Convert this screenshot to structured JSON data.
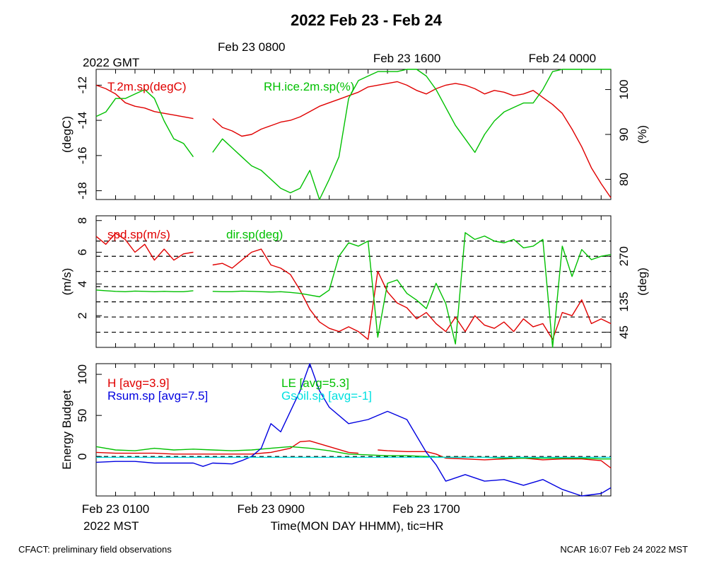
{
  "page": {
    "title": "2022 Feb 23 - Feb 24",
    "footer_left": "CFACT: preliminary field observations",
    "footer_right": "NCAR 16:07 Feb 24 2022 MST"
  },
  "colors": {
    "red": "#e00000",
    "green": "#00c000",
    "blue": "#0000e0",
    "cyan": "#00e0e0",
    "black": "#000000"
  },
  "chart_data": [
    {
      "type": "line",
      "panel": "temperature-rh",
      "top_axis": {
        "ticks": [
          {
            "hour": 8,
            "label": "Feb 23 0800"
          },
          {
            "hour": 16,
            "label": "Feb 23 1600"
          },
          {
            "hour": 24,
            "label": "Feb 24 0000"
          }
        ],
        "year_label": "2022 GMT"
      },
      "xlim": [
        0,
        26.5
      ],
      "ylabel": "(degC)",
      "ylim": [
        -18.5,
        -11.1
      ],
      "yticks": [
        -18,
        -16,
        -14,
        -12
      ],
      "ylabel_right": "(%)",
      "ylim_right": [
        75.5,
        104.5
      ],
      "yticks_right": [
        80,
        90,
        100
      ],
      "series": [
        {
          "name": "T.2m.sp(degC)",
          "axis": "left",
          "color": "red",
          "x": [
            0,
            0.5,
            1,
            1.5,
            2,
            2.5,
            3,
            3.5,
            4,
            4.5,
            5,
            5.5,
            6,
            6.5,
            7,
            7.5,
            8,
            8.5,
            9,
            9.5,
            10,
            10.5,
            11,
            11.5,
            12,
            12.5,
            13,
            13.5,
            14,
            14.5,
            15,
            15.5,
            16,
            16.5,
            17,
            17.5,
            18,
            18.5,
            19,
            19.5,
            20,
            20.5,
            21,
            21.5,
            22,
            22.5,
            23,
            23.5,
            24,
            24.5,
            25,
            25.5,
            26,
            26.5
          ],
          "y": [
            -12.0,
            -12.2,
            -12.5,
            -13.0,
            -13.2,
            -13.3,
            -13.5,
            -13.6,
            -13.7,
            -13.8,
            -13.9,
            null,
            -13.9,
            -14.4,
            -14.6,
            -14.9,
            -14.8,
            -14.5,
            -14.3,
            -14.1,
            -14.0,
            -13.8,
            -13.5,
            -13.2,
            -13.0,
            -12.8,
            -12.6,
            -12.4,
            -12.1,
            -12.0,
            -11.9,
            -11.8,
            -12.0,
            -12.3,
            -12.5,
            -12.2,
            -12.0,
            -11.9,
            -12.0,
            -12.2,
            -12.5,
            -12.3,
            -12.4,
            -12.6,
            -12.5,
            -12.3,
            -12.7,
            -13.1,
            -13.6,
            -14.5,
            -15.5,
            -16.7,
            -17.6,
            -18.4
          ]
        },
        {
          "name": "RH.ice.2m.sp(%)",
          "axis": "right",
          "color": "green",
          "x": [
            0,
            0.5,
            1,
            1.5,
            2,
            2.5,
            3,
            3.5,
            4,
            4.5,
            5,
            5.5,
            6,
            6.5,
            7,
            7.5,
            8,
            8.5,
            9,
            9.5,
            10,
            10.5,
            11,
            11.5,
            12,
            12.5,
            13,
            13.5,
            14,
            14.5,
            15,
            15.5,
            16,
            16.5,
            17,
            17.5,
            18,
            18.5,
            19,
            19.5,
            20,
            20.5,
            21,
            21.5,
            22,
            22.5,
            23,
            23.5,
            24,
            24.5,
            25,
            25.5,
            26,
            26.5
          ],
          "y": [
            94,
            95,
            98,
            98,
            99,
            100,
            98,
            93,
            89,
            88,
            85,
            null,
            86,
            89,
            87,
            85,
            83,
            82,
            80,
            78,
            77,
            78,
            82,
            75.5,
            80,
            85,
            98,
            102,
            103,
            104,
            104,
            104,
            105,
            105,
            103,
            100,
            96,
            92,
            89,
            86,
            90,
            93,
            95,
            96,
            97,
            97,
            100,
            104,
            105.5,
            105.5,
            105.5,
            105.5,
            105.5,
            105.5
          ]
        }
      ]
    },
    {
      "type": "line",
      "panel": "wind",
      "xlim": [
        0,
        26.5
      ],
      "ylabel": "(m/s)",
      "ylim": [
        0,
        8.3
      ],
      "yticks": [
        2,
        4,
        6,
        8
      ],
      "ylabel_right": "(deg)",
      "ylim_right": [
        0,
        390
      ],
      "yticks_right": [
        45,
        135,
        270
      ],
      "dashed_lines_right": [
        45,
        90,
        135,
        180,
        225,
        270,
        315
      ],
      "series": [
        {
          "name": "spd.sp(m/s)",
          "axis": "left",
          "color": "red",
          "x": [
            0,
            0.5,
            1,
            1.5,
            2,
            2.5,
            3,
            3.5,
            4,
            4.5,
            5,
            5.5,
            6,
            6.5,
            7,
            7.5,
            8,
            8.5,
            9,
            9.5,
            10,
            10.5,
            11,
            11.5,
            12,
            12.5,
            13,
            13.5,
            14,
            14.5,
            15,
            15.5,
            16,
            16.5,
            17,
            17.5,
            18,
            18.5,
            19,
            19.5,
            20,
            20.5,
            21,
            21.5,
            22,
            22.5,
            23,
            23.5,
            24,
            24.5,
            25,
            25.5,
            26,
            26.5
          ],
          "y": [
            7.0,
            6.5,
            7.2,
            6.8,
            6.0,
            6.5,
            5.5,
            6.2,
            5.5,
            5.9,
            6.0,
            null,
            5.2,
            5.3,
            5.0,
            5.5,
            6.0,
            6.2,
            5.2,
            5.0,
            4.6,
            3.6,
            2.4,
            1.6,
            1.2,
            1.0,
            1.3,
            1.0,
            0.5,
            4.8,
            3.5,
            2.8,
            2.5,
            1.8,
            2.2,
            1.5,
            1.0,
            1.9,
            1.0,
            2.0,
            1.4,
            1.2,
            1.6,
            1.0,
            1.8,
            1.3,
            1.5,
            0.5,
            2.2,
            2.0,
            3.0,
            1.5,
            1.8,
            1.5
          ]
        },
        {
          "name": "dir.sp(deg)",
          "axis": "right",
          "color": "green",
          "x": [
            0,
            0.5,
            1,
            1.5,
            2,
            2.5,
            3,
            3.5,
            4,
            4.5,
            5,
            5.5,
            6,
            6.5,
            7,
            7.5,
            8,
            8.5,
            9,
            9.5,
            10,
            10.5,
            11,
            11.5,
            12,
            12.5,
            13,
            13.5,
            14,
            14.5,
            15,
            15.5,
            16,
            16.5,
            17,
            17.5,
            18,
            18.5,
            19,
            19.5,
            20,
            20.5,
            21,
            21.5,
            22,
            22.5,
            23,
            23.5,
            24,
            24.5,
            25,
            25.5,
            26,
            26.5
          ],
          "y": [
            170,
            168,
            166,
            165,
            167,
            166,
            165,
            166,
            165,
            165,
            168,
            null,
            166,
            165,
            165,
            167,
            166,
            165,
            164,
            165,
            163,
            160,
            155,
            150,
            170,
            270,
            310,
            300,
            315,
            30,
            190,
            200,
            160,
            140,
            115,
            190,
            130,
            10,
            340,
            320,
            330,
            315,
            310,
            320,
            295,
            300,
            320,
            0,
            300,
            210,
            290,
            260,
            270,
            275
          ]
        }
      ]
    },
    {
      "type": "line",
      "panel": "energy",
      "bottom_axis": {
        "ticks": [
          {
            "hour": 1,
            "label": "Feb 23 0100"
          },
          {
            "hour": 9,
            "label": "Feb 23 0900"
          },
          {
            "hour": 17,
            "label": "Feb 23 1700"
          }
        ],
        "year_label": "2022 MST",
        "xlabel": "Time(MON DAY HHMM), tic=HR"
      },
      "xlim": [
        0,
        26.5
      ],
      "ylabel": "Energy Budget",
      "ylim": [
        -48,
        113
      ],
      "yticks": [
        0,
        50,
        100
      ],
      "zero_dashed": true,
      "series": [
        {
          "name": "H",
          "legend": "H [avg=3.9]",
          "color": "red",
          "x": [
            0,
            1,
            2,
            3,
            4,
            5,
            6,
            7,
            8,
            9,
            10,
            10.5,
            11,
            12,
            13,
            13.5,
            14,
            14.5,
            15,
            16,
            17,
            17.5,
            18,
            19,
            20,
            21,
            22,
            23,
            24,
            25,
            26,
            26.5
          ],
          "y": [
            5,
            4,
            4,
            4,
            3,
            3,
            3,
            3,
            3,
            5,
            10,
            18,
            19,
            12,
            5,
            4,
            null,
            8,
            7,
            6,
            6,
            3,
            -2,
            -3,
            -4,
            -3,
            -2,
            -4,
            -3,
            -3,
            -5,
            -14
          ]
        },
        {
          "name": "LE",
          "legend": "LE [avg=5.3]",
          "color": "green",
          "x": [
            0,
            1,
            2,
            3,
            4,
            5,
            6,
            7,
            8,
            9,
            10,
            11,
            12,
            13,
            14,
            15,
            16,
            17,
            18,
            19,
            20,
            21,
            22,
            23,
            24,
            25,
            26,
            26.5
          ],
          "y": [
            12,
            8,
            7,
            10,
            8,
            9,
            8,
            7,
            8,
            10,
            12,
            10,
            7,
            3,
            2,
            1,
            1,
            0,
            -1,
            -1,
            -1,
            -2,
            -2,
            -2,
            -2,
            -2,
            -3,
            -3
          ]
        },
        {
          "name": "Rsum.sp",
          "legend": "Rsum.sp [avg=7.5]",
          "color": "blue",
          "x": [
            0,
            1,
            2,
            3,
            4,
            5,
            5.5,
            6,
            7,
            7.5,
            8,
            8.5,
            9,
            9.5,
            10,
            10.5,
            11,
            11.5,
            12,
            13,
            14,
            15,
            16,
            17,
            17.5,
            18,
            19,
            20,
            21,
            22,
            23,
            24,
            25,
            26,
            26.5
          ],
          "y": [
            -7,
            -6,
            -6,
            -8,
            -8,
            -8,
            -12,
            -8,
            -9,
            -5,
            0,
            10,
            40,
            30,
            55,
            80,
            113,
            80,
            60,
            40,
            45,
            55,
            45,
            5,
            -10,
            -30,
            -22,
            -30,
            -28,
            -35,
            -28,
            -40,
            -48,
            -45,
            -38
          ]
        },
        {
          "name": "Gsoil.sp",
          "legend": "Gsoil.sp [avg=-1]",
          "color": "cyan",
          "x": [
            0,
            2,
            4,
            6,
            8,
            10,
            12,
            14,
            16,
            18,
            20,
            22,
            24,
            26,
            26.5
          ],
          "y": [
            -1,
            -1,
            -1,
            -1,
            -1,
            -1,
            -1,
            -1,
            -1,
            -1,
            -1,
            -1,
            -1,
            -1,
            -1
          ]
        }
      ]
    }
  ]
}
